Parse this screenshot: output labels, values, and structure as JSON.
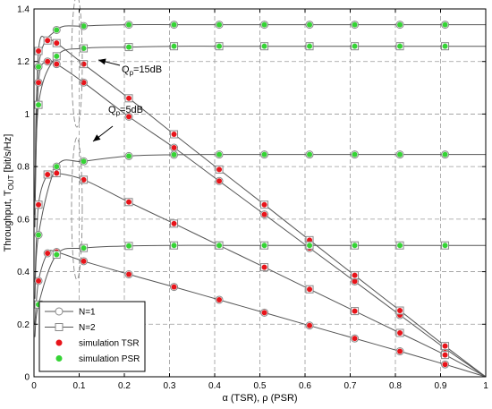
{
  "chart_data": {
    "type": "line",
    "xlabel": "α (TSR), ρ (PSR)",
    "ylabel": "Throughput, T_OUT [bit/s/Hz]",
    "ylabel_main": "Throughput, T",
    "ylabel_sub": "OUT",
    "ylabel_tail": " [bit/s/Hz]",
    "xlim": [
      0,
      1
    ],
    "ylim": [
      0,
      1.4
    ],
    "xticks": [
      "0",
      "0.1",
      "0.2",
      "0.3",
      "0.4",
      "0.5",
      "0.6",
      "0.7",
      "0.8",
      "0.9",
      "1"
    ],
    "yticks": [
      "0",
      "0.2",
      "0.4",
      "0.6",
      "0.8",
      "1",
      "1.2",
      "1.4"
    ],
    "grid": true,
    "legend_position": "bottom-left",
    "legend": [
      {
        "label": "N=1",
        "style": "circle-line"
      },
      {
        "label": "N=2",
        "style": "square-line"
      },
      {
        "label": "simulation TSR",
        "style": "red-dot"
      },
      {
        "label": "simulation PSR",
        "style": "green-dot"
      }
    ],
    "annotations": [
      {
        "label_main": "Q",
        "label_sub": "p",
        "label_tail": "=15dB"
      },
      {
        "label_main": "Q",
        "label_sub": "p",
        "label_tail": "=5dB"
      }
    ],
    "colors": {
      "tsr": "#e8141a",
      "psr": "#35d435",
      "line": "#555555",
      "marker_edge": "#888888"
    },
    "series": [
      {
        "group": "TSR",
        "qp": "15dB",
        "marker": "circle",
        "x": [
          0.01,
          0.03,
          0.05,
          0.11,
          0.21,
          0.31,
          0.41,
          0.51,
          0.61,
          0.71,
          0.81,
          0.91,
          1.0
        ],
        "y": [
          1.12,
          1.2,
          1.19,
          1.12,
          0.99,
          0.872,
          0.745,
          0.618,
          0.49,
          0.363,
          0.235,
          0.108,
          0.0
        ]
      },
      {
        "group": "TSR",
        "qp": "15dB",
        "marker": "square",
        "x": [
          0.01,
          0.03,
          0.05,
          0.11,
          0.21,
          0.31,
          0.41,
          0.51,
          0.61,
          0.71,
          0.81,
          0.91,
          1.0
        ],
        "y": [
          1.24,
          1.28,
          1.27,
          1.19,
          1.06,
          0.923,
          0.789,
          0.655,
          0.52,
          0.386,
          0.252,
          0.117,
          0.0
        ]
      },
      {
        "group": "TSR",
        "qp": "5dB",
        "marker": "circle",
        "x": [
          0.01,
          0.03,
          0.05,
          0.11,
          0.21,
          0.31,
          0.41,
          0.51,
          0.61,
          0.71,
          0.81,
          0.91,
          1.0
        ],
        "y": [
          0.365,
          0.47,
          0.475,
          0.44,
          0.39,
          0.342,
          0.293,
          0.244,
          0.195,
          0.146,
          0.097,
          0.047,
          0.0
        ]
      },
      {
        "group": "TSR",
        "qp": "5dB",
        "marker": "square",
        "x": [
          0.01,
          0.03,
          0.05,
          0.11,
          0.21,
          0.31,
          0.41,
          0.51,
          0.61,
          0.71,
          0.81,
          0.91,
          1.0
        ],
        "y": [
          0.655,
          0.77,
          0.775,
          0.75,
          0.665,
          0.583,
          0.5,
          0.417,
          0.333,
          0.25,
          0.167,
          0.083,
          0.0
        ]
      },
      {
        "group": "PSR",
        "qp": "15dB",
        "marker": "circle",
        "x": [
          0.01,
          0.05,
          0.11,
          0.21,
          0.31,
          0.41,
          0.51,
          0.61,
          0.71,
          0.81,
          0.91
        ],
        "y": [
          1.18,
          1.32,
          1.335,
          1.34,
          1.34,
          1.34,
          1.34,
          1.34,
          1.34,
          1.34,
          1.34
        ]
      },
      {
        "group": "PSR",
        "qp": "15dB",
        "marker": "square",
        "x": [
          0.01,
          0.05,
          0.11,
          0.21,
          0.31,
          0.41,
          0.51,
          0.61,
          0.71,
          0.81,
          0.91
        ],
        "y": [
          1.035,
          1.22,
          1.25,
          1.255,
          1.258,
          1.258,
          1.258,
          1.258,
          1.258,
          1.258,
          1.258
        ]
      },
      {
        "group": "PSR",
        "qp": "5dB",
        "marker": "circle",
        "x": [
          0.01,
          0.05,
          0.11,
          0.21,
          0.31,
          0.41,
          0.51,
          0.61,
          0.71,
          0.81,
          0.91
        ],
        "y": [
          0.54,
          0.8,
          0.82,
          0.84,
          0.845,
          0.846,
          0.846,
          0.846,
          0.846,
          0.846,
          0.846
        ]
      },
      {
        "group": "PSR",
        "qp": "5dB",
        "marker": "square",
        "x": [
          0.01,
          0.05,
          0.11,
          0.21,
          0.31,
          0.41,
          0.51,
          0.61,
          0.71,
          0.81,
          0.91
        ],
        "y": [
          0.275,
          0.465,
          0.49,
          0.498,
          0.5,
          0.5,
          0.5,
          0.5,
          0.5,
          0.5,
          0.5
        ]
      }
    ]
  }
}
